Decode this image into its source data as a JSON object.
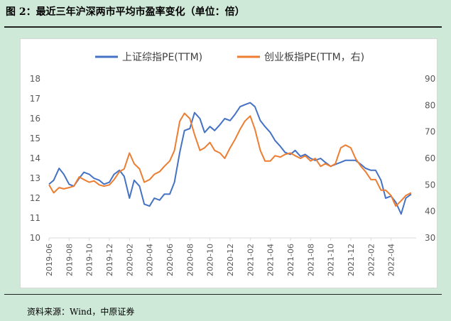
{
  "figure_title": "图 2：最近三年沪深两市平均市盈率变化（单位：倍）",
  "source": "资料来源：Wind，中原证券",
  "colors": {
    "background": "#cfe9d8",
    "series_a": "#4472c4",
    "series_b": "#ed7d31",
    "axis": "#d9d9d9"
  },
  "chart_data": {
    "type": "line",
    "title": "",
    "legend_position": "top",
    "grid": false,
    "left_axis": {
      "min": 10,
      "max": 18,
      "ticks": [
        "10",
        "11",
        "12",
        "13",
        "14",
        "15",
        "16",
        "17",
        "18"
      ]
    },
    "right_axis": {
      "min": 30,
      "max": 90,
      "ticks": [
        "30",
        "40",
        "50",
        "60",
        "70",
        "80",
        "90"
      ]
    },
    "x_ticks": [
      "2019-06",
      "2019-08",
      "2019-10",
      "2019-12",
      "2020-02",
      "2020-04",
      "2020-06",
      "2020-08",
      "2020-10",
      "2020-12",
      "2021-02",
      "2021-04",
      "2021-06",
      "2021-08",
      "2021-10",
      "2021-12",
      "2022-02",
      "2022-04"
    ],
    "series": [
      {
        "name": "上证综指PE(TTM)",
        "axis": "left",
        "color": "#4472c4",
        "points": [
          [
            "2019-06",
            12.7
          ],
          [
            "2019-06-15",
            12.9
          ],
          [
            "2019-07",
            13.5
          ],
          [
            "2019-07-15",
            13.2
          ],
          [
            "2019-08",
            12.7
          ],
          [
            "2019-08-15",
            12.6
          ],
          [
            "2019-09",
            13.0
          ],
          [
            "2019-09-15",
            13.3
          ],
          [
            "2019-10",
            13.2
          ],
          [
            "2019-10-15",
            13.0
          ],
          [
            "2019-11",
            12.9
          ],
          [
            "2019-11-15",
            12.7
          ],
          [
            "2019-12",
            12.8
          ],
          [
            "2019-12-15",
            13.2
          ],
          [
            "2020-01",
            13.4
          ],
          [
            "2020-01-15",
            13.1
          ],
          [
            "2020-02",
            12.0
          ],
          [
            "2020-02-15",
            12.9
          ],
          [
            "2020-03",
            12.6
          ],
          [
            "2020-03-15",
            11.7
          ],
          [
            "2020-04",
            11.6
          ],
          [
            "2020-04-15",
            12.0
          ],
          [
            "2020-05",
            11.9
          ],
          [
            "2020-05-15",
            12.2
          ],
          [
            "2020-06",
            12.2
          ],
          [
            "2020-06-15",
            12.8
          ],
          [
            "2020-07",
            14.3
          ],
          [
            "2020-07-15",
            15.4
          ],
          [
            "2020-08",
            15.5
          ],
          [
            "2020-08-15",
            16.3
          ],
          [
            "2020-09",
            16.0
          ],
          [
            "2020-09-15",
            15.3
          ],
          [
            "2020-10",
            15.6
          ],
          [
            "2020-10-15",
            15.4
          ],
          [
            "2020-11",
            15.7
          ],
          [
            "2020-11-15",
            16.0
          ],
          [
            "2020-12",
            15.9
          ],
          [
            "2020-12-15",
            16.2
          ],
          [
            "2021-01",
            16.6
          ],
          [
            "2021-01-15",
            16.7
          ],
          [
            "2021-02",
            16.8
          ],
          [
            "2021-02-15",
            16.6
          ],
          [
            "2021-03",
            15.9
          ],
          [
            "2021-03-15",
            15.6
          ],
          [
            "2021-04",
            15.3
          ],
          [
            "2021-04-15",
            14.9
          ],
          [
            "2021-05",
            14.6
          ],
          [
            "2021-05-15",
            14.3
          ],
          [
            "2021-06",
            14.2
          ],
          [
            "2021-06-15",
            14.4
          ],
          [
            "2021-07",
            14.1
          ],
          [
            "2021-07-15",
            14.2
          ],
          [
            "2021-08",
            14.0
          ],
          [
            "2021-08-15",
            13.9
          ],
          [
            "2021-09",
            14.0
          ],
          [
            "2021-09-15",
            13.8
          ],
          [
            "2021-10",
            13.6
          ],
          [
            "2021-10-15",
            13.7
          ],
          [
            "2021-11",
            13.8
          ],
          [
            "2021-11-15",
            13.9
          ],
          [
            "2021-12",
            13.9
          ],
          [
            "2021-12-15",
            13.9
          ],
          [
            "2022-01",
            13.7
          ],
          [
            "2022-01-15",
            13.5
          ],
          [
            "2022-02",
            13.4
          ],
          [
            "2022-02-15",
            13.4
          ],
          [
            "2022-03",
            12.9
          ],
          [
            "2022-03-15",
            12.0
          ],
          [
            "2022-04",
            12.1
          ],
          [
            "2022-04-15",
            11.8
          ],
          [
            "2022-05",
            11.2
          ],
          [
            "2022-05-15",
            12.0
          ],
          [
            "2022-06",
            12.2
          ]
        ]
      },
      {
        "name": "创业板指PE(TTM，右)",
        "axis": "right",
        "color": "#ed7d31",
        "points": [
          [
            "2019-06",
            50.0
          ],
          [
            "2019-06-15",
            47.0
          ],
          [
            "2019-07",
            49.0
          ],
          [
            "2019-07-15",
            48.5
          ],
          [
            "2019-08",
            49.0
          ],
          [
            "2019-08-15",
            49.5
          ],
          [
            "2019-09",
            53.0
          ],
          [
            "2019-09-15",
            52.0
          ],
          [
            "2019-10",
            51.0
          ],
          [
            "2019-10-15",
            51.5
          ],
          [
            "2019-11",
            50.0
          ],
          [
            "2019-11-15",
            49.5
          ],
          [
            "2019-12",
            50.0
          ],
          [
            "2019-12-15",
            52.0
          ],
          [
            "2020-01",
            55.0
          ],
          [
            "2020-01-15",
            56.0
          ],
          [
            "2020-02",
            62.0
          ],
          [
            "2020-02-15",
            58.0
          ],
          [
            "2020-03",
            56.0
          ],
          [
            "2020-03-15",
            51.0
          ],
          [
            "2020-04",
            52.0
          ],
          [
            "2020-04-15",
            54.0
          ],
          [
            "2020-05",
            55.0
          ],
          [
            "2020-05-15",
            57.0
          ],
          [
            "2020-06",
            59.0
          ],
          [
            "2020-06-15",
            63.0
          ],
          [
            "2020-07",
            74.0
          ],
          [
            "2020-07-15",
            77.0
          ],
          [
            "2020-08",
            75.0
          ],
          [
            "2020-08-15",
            69.0
          ],
          [
            "2020-09",
            63.0
          ],
          [
            "2020-09-15",
            64.0
          ],
          [
            "2020-10",
            66.0
          ],
          [
            "2020-10-15",
            63.0
          ],
          [
            "2020-11",
            62.0
          ],
          [
            "2020-11-15",
            60.0
          ],
          [
            "2020-12",
            64.0
          ],
          [
            "2020-12-15",
            67.0
          ],
          [
            "2021-01",
            71.0
          ],
          [
            "2021-01-15",
            74.0
          ],
          [
            "2021-02",
            76.0
          ],
          [
            "2021-02-15",
            71.0
          ],
          [
            "2021-03",
            63.0
          ],
          [
            "2021-03-15",
            59.0
          ],
          [
            "2021-04",
            59.0
          ],
          [
            "2021-04-15",
            61.0
          ],
          [
            "2021-05",
            60.5
          ],
          [
            "2021-05-15",
            61.5
          ],
          [
            "2021-06",
            62.0
          ],
          [
            "2021-06-15",
            61.0
          ],
          [
            "2021-07",
            60.0
          ],
          [
            "2021-07-15",
            61.0
          ],
          [
            "2021-08",
            59.0
          ],
          [
            "2021-08-15",
            60.0
          ],
          [
            "2021-09",
            57.0
          ],
          [
            "2021-09-15",
            58.0
          ],
          [
            "2021-10",
            57.0
          ],
          [
            "2021-10-15",
            58.0
          ],
          [
            "2021-11",
            64.0
          ],
          [
            "2021-11-15",
            65.0
          ],
          [
            "2021-12",
            64.0
          ],
          [
            "2021-12-15",
            60.0
          ],
          [
            "2022-01",
            57.0
          ],
          [
            "2022-01-15",
            55.0
          ],
          [
            "2022-02",
            52.0
          ],
          [
            "2022-02-15",
            52.0
          ],
          [
            "2022-03",
            48.0
          ],
          [
            "2022-03-15",
            48.0
          ],
          [
            "2022-04",
            46.0
          ],
          [
            "2022-04-15",
            42.0
          ],
          [
            "2022-05",
            44.0
          ],
          [
            "2022-05-15",
            46.0
          ],
          [
            "2022-06",
            47.0
          ]
        ]
      }
    ]
  }
}
